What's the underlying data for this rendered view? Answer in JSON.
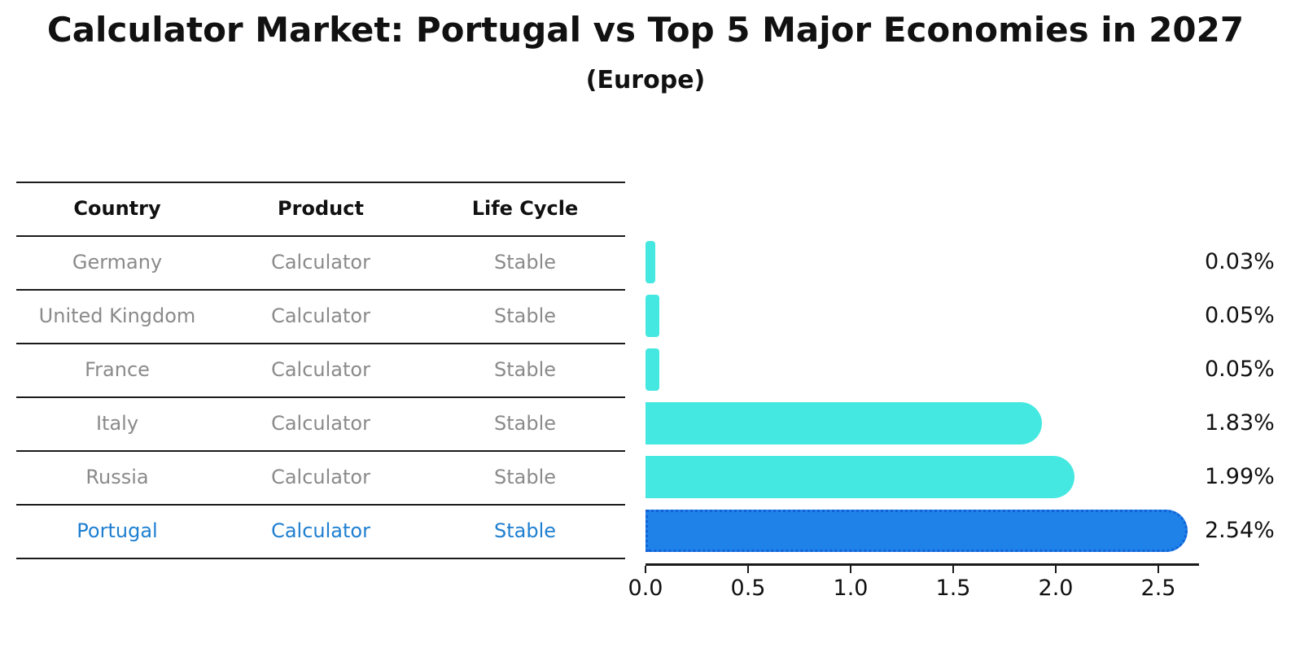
{
  "title": "Calculator Market: Portugal vs Top 5 Major Economies in 2027",
  "subtitle": "(Europe)",
  "colors": {
    "bar_default": "#45e8e0",
    "bar_highlight": "#1e82e8",
    "bar_highlight_border": "#1261d8",
    "table_text": "#8a8a8a",
    "highlight_text": "#1e7fd0",
    "line": "#1a1a1a"
  },
  "table": {
    "headers": [
      "Country",
      "Product",
      "Life Cycle"
    ],
    "rows": [
      {
        "country": "Germany",
        "product": "Calculator",
        "life_cycle": "Stable",
        "highlight": false
      },
      {
        "country": "United Kingdom",
        "product": "Calculator",
        "life_cycle": "Stable",
        "highlight": false
      },
      {
        "country": "France",
        "product": "Calculator",
        "life_cycle": "Stable",
        "highlight": false
      },
      {
        "country": "Italy",
        "product": "Calculator",
        "life_cycle": "Stable",
        "highlight": false
      },
      {
        "country": "Russia",
        "product": "Calculator",
        "life_cycle": "Stable",
        "highlight": false
      },
      {
        "country": "Portugal",
        "product": "Calculator",
        "life_cycle": "Stable",
        "highlight": true
      }
    ]
  },
  "chart_data": {
    "type": "bar",
    "orientation": "horizontal",
    "title": "Calculator Market: Portugal vs Top 5 Major Economies in 2027",
    "subtitle": "(Europe)",
    "categories": [
      "Germany",
      "United Kingdom",
      "France",
      "Italy",
      "Russia",
      "Portugal"
    ],
    "values": [
      0.03,
      0.05,
      0.05,
      1.83,
      1.99,
      2.54
    ],
    "value_labels": [
      "0.03%",
      "0.05%",
      "0.05%",
      "1.83%",
      "1.99%",
      "2.54%"
    ],
    "highlight_category": "Portugal",
    "xlabel": "",
    "ylabel": "",
    "xlim": [
      0,
      2.7
    ],
    "xticks": [
      "0.0",
      "0.5",
      "1.0",
      "1.5",
      "2.0",
      "2.5"
    ],
    "grid": false,
    "legend": false
  }
}
